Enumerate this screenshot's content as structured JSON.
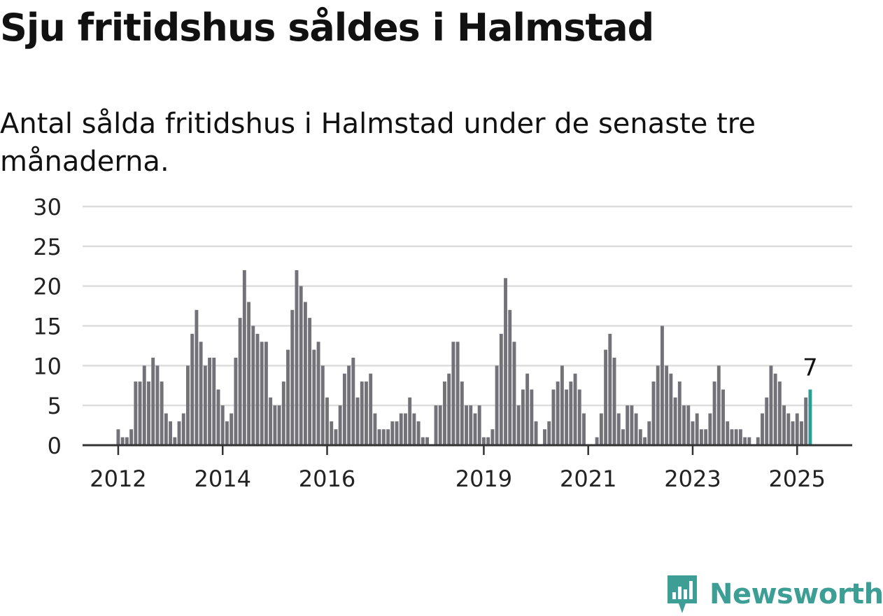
{
  "header": {
    "title": "Sju fritidshus såldes i Halmstad",
    "subtitle": "Antal sålda fritidshus i Halmstad under de senaste tre månaderna."
  },
  "brand": {
    "name": "Newsworthy",
    "color": "#3d9e95",
    "icon": "newsworthy-chart-bubble-icon"
  },
  "colors": {
    "bar": "#737278",
    "highlight": "#2a9d94",
    "grid": "#dddddd",
    "axis": "#333333"
  },
  "chart_data": {
    "type": "bar",
    "title": "Sju fritidshus såldes i Halmstad",
    "subtitle": "Antal sålda fritidshus i Halmstad under de senaste tre månaderna.",
    "xlabel": "",
    "ylabel": "",
    "ylim": [
      0,
      30
    ],
    "yticks": [
      "0",
      "5",
      "10",
      "15",
      "20",
      "25",
      "30"
    ],
    "grid": true,
    "legend": "none",
    "x_start": "2012-01",
    "x_end": "2025-04",
    "x_ticks": [
      {
        "label": "2012",
        "at": "2012-01"
      },
      {
        "label": "2014",
        "at": "2014-01"
      },
      {
        "label": "2016",
        "at": "2016-01"
      },
      {
        "label": "2019",
        "at": "2019-01"
      },
      {
        "label": "2021",
        "at": "2021-01"
      },
      {
        "label": "2023",
        "at": "2023-01"
      },
      {
        "label": "2025",
        "at": "2025-01"
      }
    ],
    "values": [
      2,
      1,
      1,
      2,
      8,
      8,
      10,
      8,
      11,
      10,
      8,
      4,
      3,
      1,
      3,
      4,
      10,
      14,
      17,
      13,
      10,
      11,
      11,
      7,
      5,
      3,
      4,
      11,
      16,
      22,
      18,
      15,
      14,
      13,
      13,
      6,
      5,
      5,
      8,
      12,
      17,
      22,
      20,
      18,
      16,
      12,
      13,
      10,
      6,
      3,
      2,
      5,
      9,
      10,
      11,
      6,
      8,
      8,
      9,
      4,
      2,
      2,
      2,
      3,
      3,
      4,
      4,
      6,
      4,
      3,
      1,
      1,
      0,
      5,
      5,
      8,
      9,
      13,
      13,
      8,
      5,
      5,
      4,
      5,
      1,
      1,
      2,
      10,
      14,
      21,
      17,
      13,
      5,
      7,
      9,
      7,
      3,
      0,
      2,
      3,
      7,
      8,
      10,
      7,
      8,
      9,
      7,
      4,
      0,
      0,
      1,
      4,
      12,
      14,
      11,
      4,
      2,
      5,
      5,
      4,
      2,
      1,
      3,
      8,
      10,
      15,
      10,
      9,
      6,
      8,
      5,
      5,
      3,
      4,
      2,
      2,
      4,
      8,
      10,
      7,
      3,
      2,
      2,
      2,
      1,
      1,
      0,
      1,
      4,
      6,
      10,
      9,
      8,
      5,
      4,
      3,
      4,
      3,
      6,
      7
    ],
    "highlight_label": "7"
  }
}
